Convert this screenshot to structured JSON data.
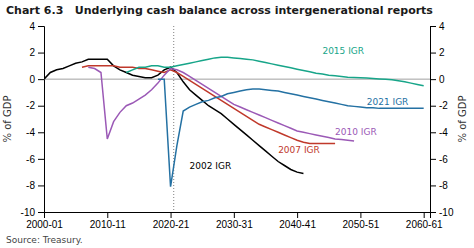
{
  "chart_data": {
    "type": "line",
    "title": "Chart 6.3   Underlying cash balance across intergenerational reports",
    "source": "Source: Treasury.",
    "ylabel": "% of GDP",
    "y2label": "% of GDP",
    "xlim": [
      2000,
      2061
    ],
    "xticks": [
      {
        "value": 2000,
        "label": "2000-01"
      },
      {
        "value": 2010,
        "label": "2010-11"
      },
      {
        "value": 2020,
        "label": "2020-21"
      },
      {
        "value": 2030,
        "label": "2030-31"
      },
      {
        "value": 2040,
        "label": "2040-41"
      },
      {
        "value": 2050,
        "label": "2050-51"
      },
      {
        "value": 2060,
        "label": "2060-61"
      }
    ],
    "ylim": [
      -10,
      4
    ],
    "yticks": [
      -10,
      -8,
      -6,
      -4,
      -2,
      0,
      2,
      4
    ],
    "y2lim": [
      -10,
      4
    ],
    "y2ticks": [
      -10,
      -8,
      -6,
      -4,
      -2,
      0,
      2,
      4
    ],
    "hline": {
      "value": 0,
      "color": "#a0a0a0"
    },
    "vline": {
      "value": 2020.5,
      "color": "gray",
      "line_style": "dotted"
    },
    "series": [
      {
        "name": "2002 IGR",
        "color": "#000000",
        "label_x": 2023,
        "label_y": -6.5,
        "x": [
          2000,
          2001,
          2002,
          2003,
          2004,
          2005,
          2006,
          2007,
          2008,
          2009,
          2010,
          2011,
          2012,
          2013,
          2014,
          2015,
          2016,
          2017,
          2018,
          2019,
          2020,
          2021,
          2022,
          2023,
          2024,
          2025,
          2026,
          2027,
          2028,
          2029,
          2030,
          2031,
          2032,
          2033,
          2034,
          2035,
          2036,
          2037,
          2038,
          2039,
          2040,
          2041
        ],
        "values": [
          0.0,
          0.5,
          0.7,
          0.8,
          1.0,
          1.2,
          1.3,
          1.5,
          1.5,
          1.5,
          1.5,
          1.0,
          0.7,
          0.5,
          0.3,
          0.2,
          0.1,
          0.1,
          0.3,
          0.7,
          0.9,
          0.5,
          -0.2,
          -0.8,
          -1.2,
          -1.6,
          -2.0,
          -2.3,
          -2.6,
          -3.0,
          -3.4,
          -3.8,
          -4.2,
          -4.6,
          -5.0,
          -5.4,
          -5.8,
          -6.2,
          -6.5,
          -6.8,
          -7.0,
          -7.1
        ]
      },
      {
        "name": "2007 IGR",
        "color": "#c0392b",
        "label_x": 2037,
        "label_y": -5.3,
        "x": [
          2006,
          2007,
          2008,
          2009,
          2010,
          2011,
          2012,
          2013,
          2014,
          2015,
          2016,
          2017,
          2018,
          2019,
          2020,
          2021,
          2022,
          2023,
          2024,
          2025,
          2026,
          2027,
          2028,
          2029,
          2030,
          2031,
          2032,
          2033,
          2034,
          2035,
          2036,
          2037,
          2038,
          2039,
          2040,
          2041,
          2042,
          2043,
          2044,
          2045,
          2046
        ],
        "values": [
          0.9,
          1.0,
          1.0,
          1.0,
          1.0,
          1.0,
          0.9,
          0.9,
          0.9,
          0.8,
          0.8,
          0.7,
          0.6,
          0.5,
          0.7,
          0.5,
          0.2,
          -0.1,
          -0.4,
          -0.7,
          -1.0,
          -1.3,
          -1.6,
          -1.9,
          -2.2,
          -2.5,
          -2.8,
          -3.1,
          -3.4,
          -3.6,
          -3.8,
          -4.0,
          -4.2,
          -4.4,
          -4.6,
          -4.75,
          -4.85,
          -4.85,
          -4.85,
          -4.85,
          -4.85
        ]
      },
      {
        "name": "2010 IGR",
        "color": "#9b59b6",
        "label_x": 2046,
        "label_y": -4.0,
        "x": [
          2007,
          2008,
          2009,
          2010,
          2011,
          2012,
          2013,
          2014,
          2015,
          2016,
          2017,
          2018,
          2019,
          2020,
          2021,
          2022,
          2023,
          2024,
          2025,
          2026,
          2027,
          2028,
          2029,
          2030,
          2031,
          2032,
          2033,
          2034,
          2035,
          2036,
          2037,
          2038,
          2039,
          2040,
          2041,
          2042,
          2043,
          2044,
          2045,
          2046,
          2047,
          2048,
          2049
        ],
        "values": [
          0.9,
          0.8,
          0.5,
          -4.5,
          -3.2,
          -2.5,
          -2.0,
          -1.8,
          -1.5,
          -1.2,
          -0.8,
          -0.3,
          0.3,
          0.8,
          0.7,
          0.5,
          0.2,
          -0.1,
          -0.4,
          -0.7,
          -1.0,
          -1.3,
          -1.6,
          -1.9,
          -2.1,
          -2.3,
          -2.5,
          -2.7,
          -2.9,
          -3.1,
          -3.3,
          -3.5,
          -3.7,
          -3.9,
          -4.0,
          -4.1,
          -4.2,
          -4.3,
          -4.4,
          -4.5,
          -4.55,
          -4.6,
          -4.65
        ]
      },
      {
        "name": "2015 IGR",
        "color": "#17a589",
        "label_x": 2044,
        "label_y": 2.1,
        "x": [
          2013,
          2014,
          2015,
          2016,
          2017,
          2018,
          2019,
          2020,
          2021,
          2022,
          2023,
          2024,
          2025,
          2026,
          2027,
          2028,
          2029,
          2030,
          2031,
          2032,
          2033,
          2034,
          2035,
          2036,
          2037,
          2038,
          2039,
          2040,
          2041,
          2042,
          2043,
          2044,
          2045,
          2046,
          2047,
          2048,
          2049,
          2050,
          2051,
          2052,
          2053,
          2054,
          2055,
          2056,
          2057,
          2058,
          2059,
          2060
        ],
        "values": [
          0.5,
          0.7,
          0.9,
          0.9,
          1.0,
          1.0,
          0.9,
          0.9,
          1.0,
          1.1,
          1.2,
          1.3,
          1.4,
          1.5,
          1.6,
          1.65,
          1.65,
          1.6,
          1.55,
          1.5,
          1.45,
          1.35,
          1.25,
          1.15,
          1.05,
          0.95,
          0.85,
          0.75,
          0.65,
          0.55,
          0.45,
          0.38,
          0.3,
          0.25,
          0.2,
          0.15,
          0.12,
          0.1,
          0.08,
          0.05,
          0.02,
          0.0,
          -0.05,
          -0.12,
          -0.2,
          -0.3,
          -0.4,
          -0.5
        ]
      },
      {
        "name": "2021 IGR",
        "color": "#2471a3",
        "label_x": 2051,
        "label_y": -1.7,
        "x": [
          2018,
          2019,
          2020,
          2021,
          2022,
          2023,
          2024,
          2025,
          2026,
          2027,
          2028,
          2029,
          2030,
          2031,
          2032,
          2033,
          2034,
          2035,
          2036,
          2037,
          2038,
          2039,
          2040,
          2041,
          2042,
          2043,
          2044,
          2045,
          2046,
          2047,
          2048,
          2049,
          2050,
          2051,
          2052,
          2053,
          2054,
          2055,
          2056,
          2057,
          2058,
          2059,
          2060
        ],
        "values": [
          0.0,
          0.0,
          -8.1,
          -5.0,
          -2.4,
          -2.1,
          -1.9,
          -1.7,
          -1.6,
          -1.4,
          -1.3,
          -1.1,
          -1.0,
          -0.9,
          -0.8,
          -0.75,
          -0.75,
          -0.8,
          -0.85,
          -0.9,
          -1.0,
          -1.1,
          -1.2,
          -1.3,
          -1.4,
          -1.5,
          -1.6,
          -1.7,
          -1.8,
          -1.9,
          -2.0,
          -2.05,
          -2.1,
          -2.15,
          -2.15,
          -2.2,
          -2.2,
          -2.2,
          -2.2,
          -2.2,
          -2.2,
          -2.2,
          -2.2
        ]
      }
    ]
  }
}
